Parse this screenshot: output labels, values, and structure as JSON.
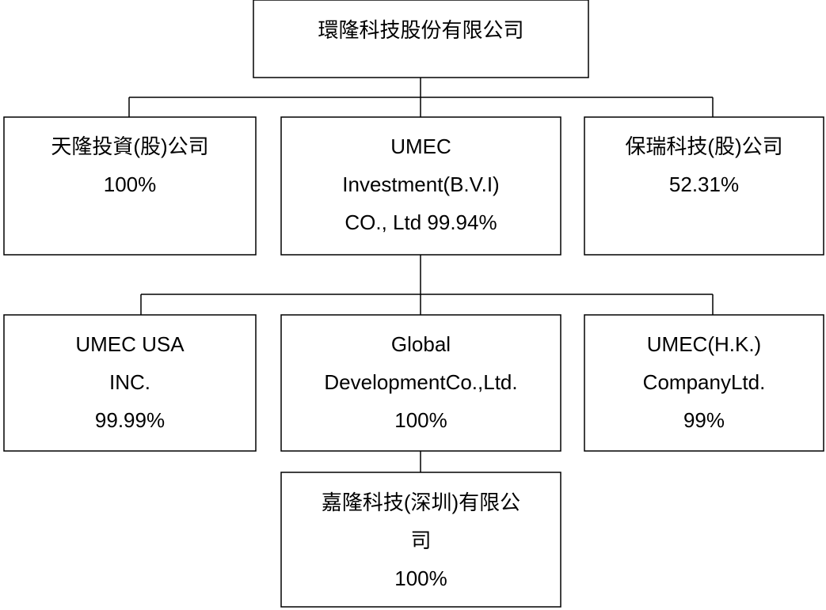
{
  "nodes": [
    {
      "lines": [
        "環隆科技股份有限公司"
      ]
    },
    {
      "lines": [
        "天隆投資(股)公司",
        "100%"
      ]
    },
    {
      "lines": [
        "UMEC",
        "Investment(B.V.I)",
        "CO., Ltd 99.94%"
      ]
    },
    {
      "lines": [
        "保瑞科技(股)公司",
        "52.31%"
      ]
    },
    {
      "lines": [
        "UMEC USA",
        "INC.",
        "99.99%"
      ]
    },
    {
      "lines": [
        "Global",
        "DevelopmentCo.,Ltd.",
        "100%"
      ]
    },
    {
      "lines": [
        "UMEC(H.K.)",
        "CompanyLtd.",
        "99%"
      ]
    },
    {
      "lines": [
        "嘉隆科技(深圳)有限公",
        "司",
        "100%"
      ]
    }
  ]
}
